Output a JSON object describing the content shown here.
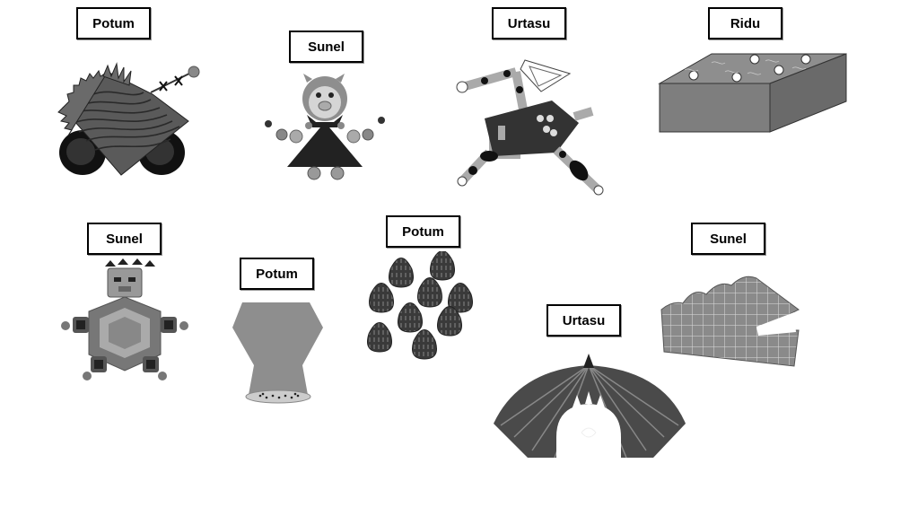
{
  "cards": [
    {
      "name": "Potum",
      "figure": "tracked-rover"
    },
    {
      "name": "Sunel",
      "figure": "pig-triangle-dancer"
    },
    {
      "name": "Urtasu",
      "figure": "pentagon-leg-runner"
    },
    {
      "name": "Ridu",
      "figure": "gray-box"
    },
    {
      "name": "Sunel",
      "figure": "hexagon-bear"
    },
    {
      "name": "Potum",
      "figure": "hourglass-vase"
    },
    {
      "name": "Potum",
      "figure": "egg-cluster"
    },
    {
      "name": "Urtasu",
      "figure": "striped-dome"
    },
    {
      "name": "Sunel",
      "figure": "grid-wedge-jaw"
    }
  ],
  "colors": {
    "dark": "#3a3a3a",
    "mid": "#7a7a7a",
    "light": "#b5b5b5",
    "black": "#111111"
  }
}
